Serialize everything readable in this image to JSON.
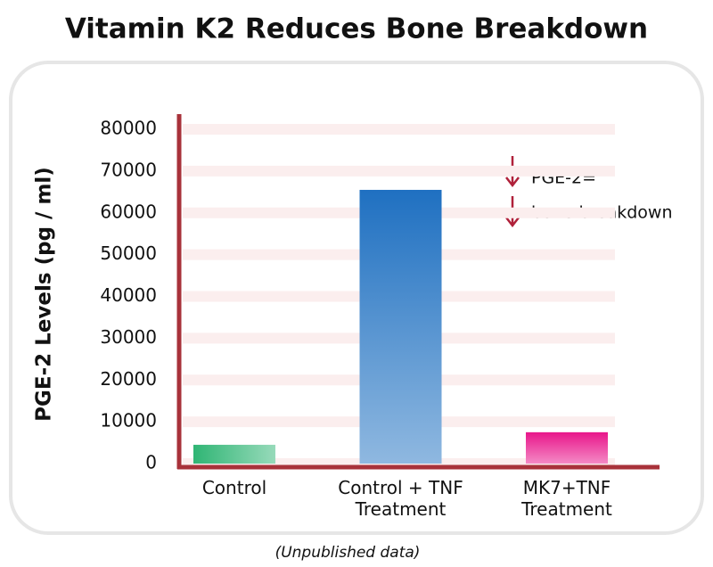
{
  "chart_data": {
    "type": "bar",
    "title": "Vitamin K2 Reduces Bone Breakdown",
    "y_label": "PGE-2 Levels (pg / ml)",
    "categories": [
      "Control",
      "Control + TNF\nTreatment",
      "MK7+TNF\nTreatment"
    ],
    "values": [
      4500,
      65500,
      7500
    ],
    "colors": [
      "#2fb574",
      "#1f70c1",
      "#e8158a"
    ],
    "ylim": [
      0,
      80000
    ],
    "yticks": [
      0,
      10000,
      20000,
      30000,
      40000,
      50000,
      60000,
      70000,
      80000
    ],
    "grid": true,
    "annotations": [
      "PGE-2=",
      "bone breakdown"
    ],
    "footnote": "(Unpublished data)"
  }
}
